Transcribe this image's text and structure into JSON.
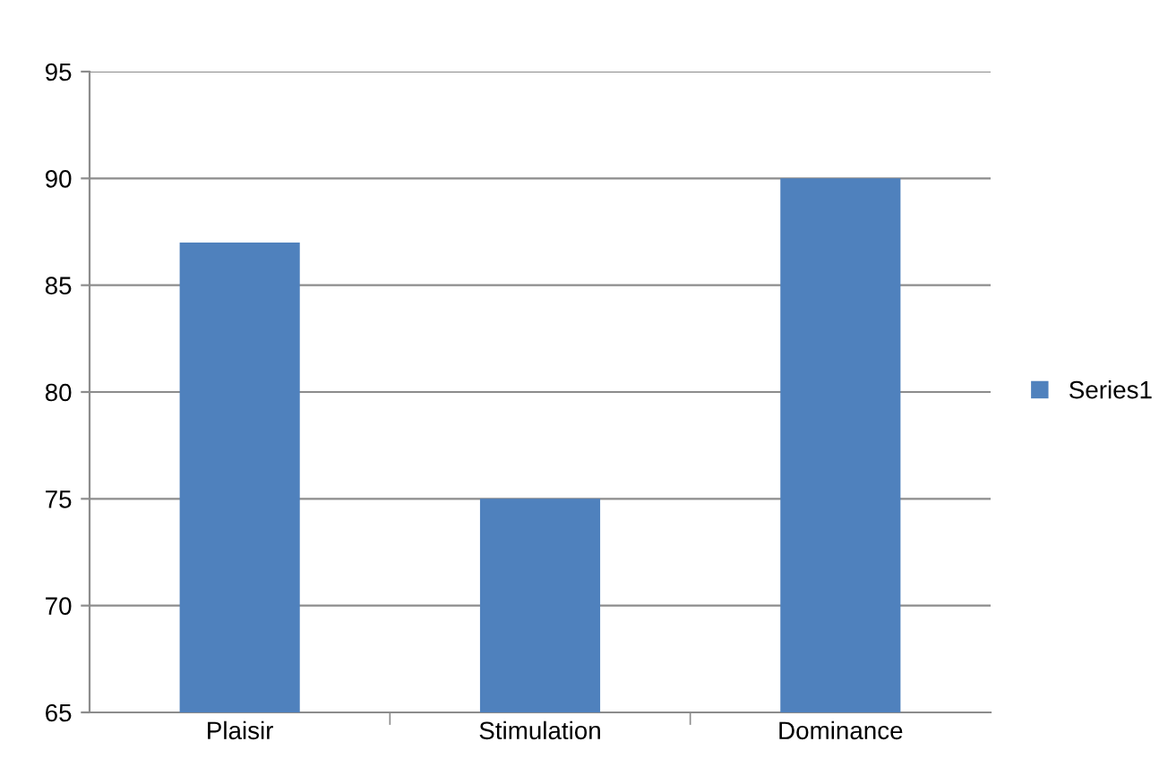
{
  "chart_data": {
    "type": "bar",
    "categories": [
      "Plaisir",
      "Stimulation",
      "Dominance"
    ],
    "series": [
      {
        "name": "Series1",
        "color": "#4f81bd",
        "values": [
          87,
          75,
          90
        ]
      }
    ],
    "ylim": [
      65,
      95
    ],
    "yticks": [
      65,
      70,
      75,
      80,
      85,
      90,
      95
    ],
    "grid": "y",
    "legend": "right"
  }
}
